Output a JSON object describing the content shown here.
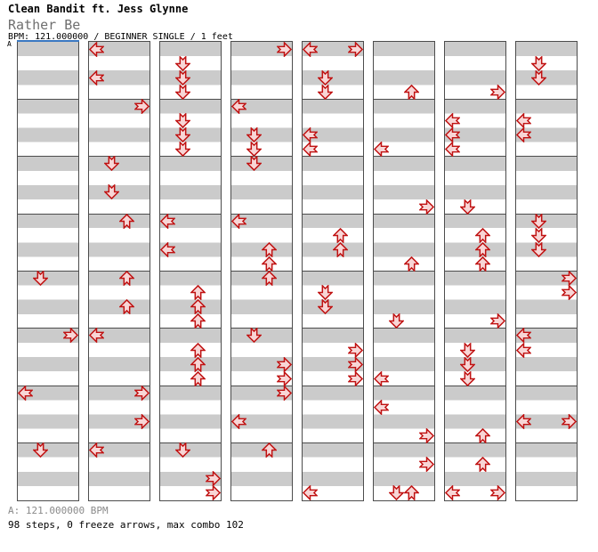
{
  "header": {
    "artist": "Clean Bandit ft. Jess Glynne",
    "title": "Rather Be",
    "info_line": "BPM: 121.000000 / BEGINNER SINGLE / 1 feet",
    "bpm_marker_label": "A"
  },
  "footer": {
    "bpm_line": "A: 121.000000 BPM",
    "stats_line": "98 steps, 0 freeze arrows, max combo 102"
  },
  "chart": {
    "type": "ddr-stepchart",
    "lanes": [
      "left",
      "down",
      "up",
      "right"
    ],
    "columns": 8,
    "measures_per_column": 8,
    "beats_per_measure": 4,
    "total_steps": 98,
    "freeze_arrows": 0,
    "max_combo": 102,
    "colors": {
      "stripe_gray": "#cbcbcb",
      "stripe_white": "#ffffff",
      "grid_line": "#4c4c4c",
      "arrow_fill": "#f8d6d6",
      "arrow_stroke": "#c01212",
      "bpm_marker_blue": "#3a78c2"
    },
    "arrows": [
      [
        0,
        16,
        "D"
      ],
      [
        0,
        20,
        "R"
      ],
      [
        0,
        24,
        "L"
      ],
      [
        0,
        28,
        "D"
      ],
      [
        1,
        0,
        "L"
      ],
      [
        1,
        2,
        "L"
      ],
      [
        1,
        4,
        "R"
      ],
      [
        1,
        8,
        "D"
      ],
      [
        1,
        10,
        "D"
      ],
      [
        1,
        12,
        "U"
      ],
      [
        1,
        16,
        "U"
      ],
      [
        1,
        18,
        "U"
      ],
      [
        1,
        20,
        "L"
      ],
      [
        1,
        24,
        "R"
      ],
      [
        1,
        26,
        "R"
      ],
      [
        1,
        28,
        "L"
      ],
      [
        2,
        1,
        "D"
      ],
      [
        2,
        2,
        "D"
      ],
      [
        2,
        3,
        "D"
      ],
      [
        2,
        5,
        "D"
      ],
      [
        2,
        6,
        "D"
      ],
      [
        2,
        7,
        "D"
      ],
      [
        2,
        12,
        "L"
      ],
      [
        2,
        14,
        "L"
      ],
      [
        2,
        17,
        "U"
      ],
      [
        2,
        18,
        "U"
      ],
      [
        2,
        19,
        "U"
      ],
      [
        2,
        21,
        "U"
      ],
      [
        2,
        22,
        "U"
      ],
      [
        2,
        23,
        "U"
      ],
      [
        2,
        28,
        "D"
      ],
      [
        2,
        30,
        "R"
      ],
      [
        2,
        31,
        "R"
      ],
      [
        3,
        0,
        "R"
      ],
      [
        3,
        4,
        "L"
      ],
      [
        3,
        6,
        "D"
      ],
      [
        3,
        7,
        "D"
      ],
      [
        3,
        8,
        "D"
      ],
      [
        3,
        12,
        "L"
      ],
      [
        3,
        14,
        "U"
      ],
      [
        3,
        15,
        "U"
      ],
      [
        3,
        16,
        "U"
      ],
      [
        3,
        20,
        "D"
      ],
      [
        3,
        22,
        "R"
      ],
      [
        3,
        23,
        "R"
      ],
      [
        3,
        24,
        "R"
      ],
      [
        3,
        26,
        "L"
      ],
      [
        3,
        28,
        "U"
      ],
      [
        4,
        0,
        "L"
      ],
      [
        4,
        0,
        "R"
      ],
      [
        4,
        2,
        "D"
      ],
      [
        4,
        3,
        "D"
      ],
      [
        4,
        6,
        "L"
      ],
      [
        4,
        7,
        "L"
      ],
      [
        4,
        13,
        "U"
      ],
      [
        4,
        14,
        "U"
      ],
      [
        4,
        17,
        "D"
      ],
      [
        4,
        18,
        "D"
      ],
      [
        4,
        21,
        "R"
      ],
      [
        4,
        22,
        "R"
      ],
      [
        4,
        23,
        "R"
      ],
      [
        4,
        31,
        "L"
      ],
      [
        5,
        3,
        "U"
      ],
      [
        5,
        7,
        "L"
      ],
      [
        5,
        11,
        "R"
      ],
      [
        5,
        15,
        "U"
      ],
      [
        5,
        19,
        "D"
      ],
      [
        5,
        23,
        "L"
      ],
      [
        5,
        25,
        "L"
      ],
      [
        5,
        27,
        "R"
      ],
      [
        5,
        29,
        "R"
      ],
      [
        5,
        31,
        "D"
      ],
      [
        5,
        31,
        "U"
      ],
      [
        6,
        3,
        "R"
      ],
      [
        6,
        5,
        "L"
      ],
      [
        6,
        6,
        "L"
      ],
      [
        6,
        7,
        "L"
      ],
      [
        6,
        11,
        "D"
      ],
      [
        6,
        13,
        "U"
      ],
      [
        6,
        14,
        "U"
      ],
      [
        6,
        15,
        "U"
      ],
      [
        6,
        19,
        "R"
      ],
      [
        6,
        21,
        "D"
      ],
      [
        6,
        22,
        "D"
      ],
      [
        6,
        23,
        "D"
      ],
      [
        6,
        27,
        "U"
      ],
      [
        6,
        29,
        "U"
      ],
      [
        6,
        31,
        "L"
      ],
      [
        6,
        31,
        "R"
      ],
      [
        7,
        1,
        "D"
      ],
      [
        7,
        2,
        "D"
      ],
      [
        7,
        5,
        "L"
      ],
      [
        7,
        6,
        "L"
      ],
      [
        7,
        12,
        "D"
      ],
      [
        7,
        13,
        "D"
      ],
      [
        7,
        14,
        "D"
      ],
      [
        7,
        16,
        "R"
      ],
      [
        7,
        17,
        "R"
      ],
      [
        7,
        20,
        "L"
      ],
      [
        7,
        21,
        "L"
      ],
      [
        7,
        26,
        "L"
      ],
      [
        7,
        26,
        "R"
      ]
    ]
  }
}
